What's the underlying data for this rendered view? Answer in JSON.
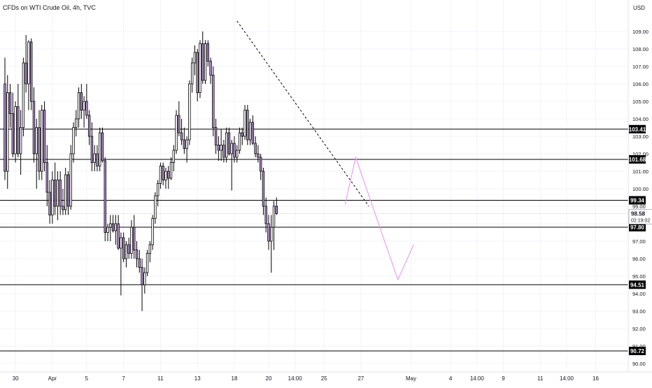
{
  "header": {
    "title": "CFDs on WTI Crude Oil, 4h, TVC",
    "currency": "USD"
  },
  "colors": {
    "up_body": "#ffffff",
    "down_body": "#b790d4",
    "candle_outline": "#000000",
    "level_line": "#000000",
    "projection": "#e98ff5",
    "trendline": "#000000",
    "grid": "#f0f3fa"
  },
  "chart_data": {
    "type": "candlestick",
    "ylim": [
      90,
      110.6
    ],
    "y_ticks": [
      "90.00",
      "91.00",
      "92.00",
      "93.00",
      "94.00",
      "95.00",
      "96.00",
      "97.00",
      "98.00",
      "99.00",
      "100.00",
      "101.00",
      "102.00",
      "103.00",
      "104.00",
      "105.00",
      "106.00",
      "107.00",
      "108.00",
      "109.00"
    ],
    "x_labels": [
      {
        "label": "30",
        "index": 4
      },
      {
        "label": "Apr",
        "index": 18
      },
      {
        "label": "5",
        "index": 31
      },
      {
        "label": "7",
        "index": 45
      },
      {
        "label": "11",
        "index": 59
      },
      {
        "label": "13",
        "index": 73
      },
      {
        "label": "18",
        "index": 87
      },
      {
        "label": "20",
        "index": 100
      },
      {
        "label": "14:00",
        "index": 110
      },
      {
        "label": "25",
        "index": 121
      },
      {
        "label": "27",
        "index": 135
      },
      {
        "label": "May",
        "index": 154
      },
      {
        "label": "4",
        "index": 169
      },
      {
        "label": "14:00",
        "index": 179
      },
      {
        "label": "9",
        "index": 189
      },
      {
        "label": "11",
        "index": 203
      },
      {
        "label": "14:00",
        "index": 213
      },
      {
        "label": "16",
        "index": 224
      }
    ],
    "levels": [
      103.41,
      101.68,
      99.34,
      97.8,
      94.51,
      90.72
    ],
    "current_price": 98.58,
    "countdown": "02:19:02",
    "trendline": [
      {
        "i": 88,
        "p": 109.6
      },
      {
        "i": 138,
        "p": 99.0
      }
    ],
    "projection": [
      {
        "i": 129,
        "p": 99.1
      },
      {
        "i": 133,
        "p": 101.8
      },
      {
        "i": 149,
        "p": 94.8
      },
      {
        "i": 155,
        "p": 96.8
      }
    ],
    "candles": [
      [
        106,
        107.5,
        100.5,
        101
      ],
      [
        101,
        106.5,
        100,
        105.5
      ],
      [
        105.5,
        106,
        103.5,
        104.3
      ],
      [
        104.3,
        105.5,
        101.8,
        102
      ],
      [
        102,
        105,
        101.5,
        104.7
      ],
      [
        104.7,
        106,
        101.8,
        102
      ],
      [
        102,
        104.5,
        100.8,
        103.5
      ],
      [
        103.5,
        107.5,
        103,
        107.2
      ],
      [
        107.2,
        108.8,
        105.5,
        106
      ],
      [
        106,
        108.5,
        104.5,
        108.4
      ],
      [
        108.4,
        108.6,
        104.5,
        105
      ],
      [
        105,
        105.8,
        101.5,
        102
      ],
      [
        102,
        104,
        100,
        103.5
      ],
      [
        103.5,
        104.5,
        100.5,
        101
      ],
      [
        101,
        104.8,
        100.5,
        104.5
      ],
      [
        104.5,
        105,
        101,
        101.5
      ],
      [
        101.5,
        102.5,
        99,
        99.8
      ],
      [
        99.8,
        100.5,
        98,
        98.5
      ],
      [
        98.5,
        101,
        98,
        100.5
      ],
      [
        100.5,
        101.5,
        98.5,
        99
      ],
      [
        99,
        101,
        98.2,
        100.5
      ],
      [
        100.5,
        101,
        98.5,
        99
      ],
      [
        99,
        100,
        98.5,
        98.8
      ],
      [
        98.8,
        101.2,
        98.5,
        100.8
      ],
      [
        100.8,
        101,
        98.5,
        99
      ],
      [
        99,
        102.5,
        98.8,
        102
      ],
      [
        102,
        103.8,
        101.5,
        103.5
      ],
      [
        103.5,
        104.5,
        103,
        104
      ],
      [
        104,
        105.8,
        103.5,
        105.5
      ],
      [
        105.5,
        106,
        104,
        104.5
      ],
      [
        104.5,
        105.3,
        103.5,
        105
      ],
      [
        105,
        106,
        104,
        104.2
      ],
      [
        104.2,
        104.5,
        102.5,
        103
      ],
      [
        103,
        103.8,
        101,
        101.5
      ],
      [
        101.5,
        102.5,
        101,
        102
      ],
      [
        102,
        102.5,
        101,
        101.3
      ],
      [
        101.3,
        103.5,
        101,
        103.2
      ],
      [
        103.2,
        103.5,
        101.5,
        101.6
      ],
      [
        101.6,
        101.8,
        97,
        97.5
      ],
      [
        97.5,
        98,
        97,
        97.8
      ],
      [
        97.8,
        98.5,
        97,
        98
      ],
      [
        98,
        98.5,
        97.5,
        97.6
      ],
      [
        97.6,
        98.5,
        96.8,
        98
      ],
      [
        98,
        98.5,
        96.5,
        96.6
      ],
      [
        96.6,
        97.5,
        93.9,
        97.2
      ],
      [
        97.2,
        97.5,
        95.8,
        96
      ],
      [
        96,
        97,
        95.5,
        96.8
      ],
      [
        96.8,
        97.2,
        96,
        96.3
      ],
      [
        96.3,
        98.2,
        96,
        97.8
      ],
      [
        97.8,
        98.5,
        96,
        96.5
      ],
      [
        96.5,
        97,
        95.5,
        96
      ],
      [
        96,
        96.5,
        95.2,
        95.5
      ],
      [
        95.5,
        96,
        93,
        94.5
      ],
      [
        94.5,
        95.5,
        94,
        95.2
      ],
      [
        95.2,
        96.5,
        95,
        96.3
      ],
      [
        96.3,
        97,
        95.8,
        96.8
      ],
      [
        96.8,
        98.5,
        96.5,
        98.3
      ],
      [
        98.3,
        99.8,
        98,
        99.6
      ],
      [
        99.6,
        100.5,
        99,
        100.3
      ],
      [
        100.3,
        101.5,
        100,
        101.3
      ],
      [
        101.3,
        101.5,
        100.2,
        100.5
      ],
      [
        100.5,
        101.2,
        100,
        101
      ],
      [
        101,
        101.3,
        100,
        100.6
      ],
      [
        100.6,
        101.8,
        100.5,
        101.5
      ],
      [
        101.5,
        102.5,
        101,
        102.2
      ],
      [
        102.2,
        104.5,
        102,
        104.2
      ],
      [
        104.2,
        105,
        103,
        103.2
      ],
      [
        103.2,
        104,
        102.5,
        102.8
      ],
      [
        102.8,
        103.5,
        102,
        102.3
      ],
      [
        102.3,
        103,
        101.5,
        102.8
      ],
      [
        102.8,
        106.2,
        102.5,
        106
      ],
      [
        106,
        107.5,
        105.5,
        107.2
      ],
      [
        107.2,
        108.2,
        106.5,
        107.8
      ],
      [
        107.8,
        108,
        105,
        105.5
      ],
      [
        105.5,
        108.5,
        105.2,
        108.3
      ],
      [
        108.3,
        109,
        106,
        106.2
      ],
      [
        106.2,
        108.5,
        106,
        108.3
      ],
      [
        108.3,
        108.5,
        107,
        107.3
      ],
      [
        107.3,
        107.5,
        106,
        106.5
      ],
      [
        106.5,
        107,
        103,
        103.5
      ],
      [
        103.5,
        104,
        102,
        102.5
      ],
      [
        102.5,
        103,
        101.6,
        102.2
      ],
      [
        102.2,
        103.4,
        101.6,
        102.5
      ],
      [
        102.5,
        102.8,
        101.5,
        101.8
      ],
      [
        101.8,
        103.5,
        101.5,
        103.2
      ],
      [
        103.2,
        103.5,
        101.9,
        102
      ],
      [
        102,
        102.8,
        99.9,
        102.6
      ],
      [
        102.6,
        103,
        101.5,
        101.8
      ],
      [
        101.8,
        102.5,
        101.5,
        102.2
      ],
      [
        102.2,
        103.5,
        102,
        103.2
      ],
      [
        103.2,
        103.5,
        102.5,
        103
      ],
      [
        103,
        104.8,
        102.8,
        104.5
      ],
      [
        104.5,
        104.8,
        102.5,
        102.8
      ],
      [
        102.8,
        104,
        102.5,
        103.8
      ],
      [
        103.8,
        104.2,
        102.5,
        102.6
      ],
      [
        102.6,
        103,
        101.8,
        102
      ],
      [
        102,
        102.5,
        101.5,
        101.8
      ],
      [
        101.8,
        102,
        100.5,
        101
      ],
      [
        101,
        101.2,
        98.5,
        99
      ],
      [
        99,
        99.5,
        97.5,
        98
      ],
      [
        98,
        98.5,
        96.5,
        97
      ],
      [
        97,
        98.5,
        95.2,
        97.8
      ],
      [
        97.8,
        99.3,
        96.5,
        99
      ],
      [
        99,
        99.5,
        98.5,
        98.58
      ]
    ]
  }
}
